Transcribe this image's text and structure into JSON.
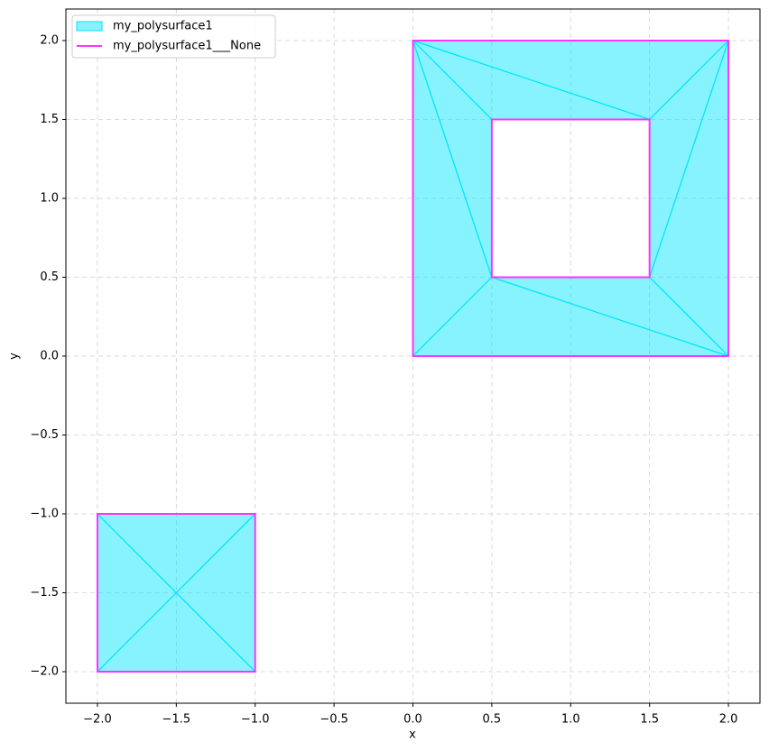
{
  "chart_data": {
    "type": "polygon",
    "xlabel": "x",
    "ylabel": "y",
    "xlim": [
      -2.2,
      2.2
    ],
    "ylim": [
      -2.2,
      2.2
    ],
    "xticks": [
      {
        "value": -2,
        "label": "−2.0"
      },
      {
        "value": -1.5,
        "label": "−1.5"
      },
      {
        "value": -1,
        "label": "−1.0"
      },
      {
        "value": -0.5,
        "label": "−0.5"
      },
      {
        "value": 0,
        "label": "0.0"
      },
      0.5,
      {
        "value": 1,
        "label": "1.0"
      },
      1.5,
      {
        "value": 2,
        "label": "2.0"
      }
    ],
    "yticks": [
      {
        "value": -2,
        "label": "−2.0"
      },
      {
        "value": -1.5,
        "label": "−1.5"
      },
      {
        "value": -1,
        "label": "−1.0"
      },
      {
        "value": -0.5,
        "label": "−0.5"
      },
      {
        "value": 0,
        "label": "0.0"
      },
      0.5,
      {
        "value": 1,
        "label": "1.0"
      },
      1.5,
      {
        "value": 2,
        "label": "2.0"
      }
    ],
    "grid": true,
    "legend": "upper left",
    "series": [
      {
        "name": "my_polysurface1",
        "color": "#00e5ff",
        "shape": "filled",
        "polygons": [
          {
            "x": [
              0,
              2,
              1.5
            ],
            "y": [
              2,
              2,
              1.5
            ]
          },
          {
            "x": [
              0,
              1.5,
              0.5
            ],
            "y": [
              2,
              1.5,
              1.5
            ]
          },
          {
            "x": [
              0,
              0.5,
              0.5
            ],
            "y": [
              2,
              1.5,
              0.5
            ]
          },
          {
            "x": [
              0,
              0.5,
              0
            ],
            "y": [
              2,
              0.5,
              0
            ]
          },
          {
            "x": [
              0,
              2,
              0.5
            ],
            "y": [
              0,
              0,
              0.5
            ]
          },
          {
            "x": [
              2,
              1.5,
              0.5
            ],
            "y": [
              0,
              0.5,
              0.5
            ]
          },
          {
            "x": [
              2,
              2,
              1.5
            ],
            "y": [
              0,
              2,
              0.5
            ]
          },
          {
            "x": [
              2,
              1.5,
              1.5
            ],
            "y": [
              2,
              1.5,
              0.5
            ]
          },
          {
            "x": [
              -2,
              -1,
              -1.5
            ],
            "y": [
              -2,
              -2,
              -1.5
            ]
          },
          {
            "x": [
              -1,
              -1,
              -1.5
            ],
            "y": [
              -2,
              -1,
              -1.5
            ]
          },
          {
            "x": [
              -1,
              -2,
              -1.5
            ],
            "y": [
              -1,
              -1,
              -1.5
            ]
          },
          {
            "x": [
              -2,
              -2,
              -1.5
            ],
            "y": [
              -1,
              -2,
              -1.5
            ]
          }
        ]
      },
      {
        "name": "my_polysurface1___None",
        "color": "#ff33ff",
        "shape": "outline",
        "polygons": [
          {
            "x": [
              0,
              2,
              2,
              0
            ],
            "y": [
              0,
              0,
              2,
              2
            ]
          },
          {
            "x": [
              0.5,
              1.5,
              1.5,
              0.5
            ],
            "y": [
              0.5,
              0.5,
              1.5,
              1.5
            ]
          },
          {
            "x": [
              -2,
              -1,
              -1,
              -2
            ],
            "y": [
              -2,
              -2,
              -1,
              -1
            ]
          }
        ]
      }
    ]
  }
}
